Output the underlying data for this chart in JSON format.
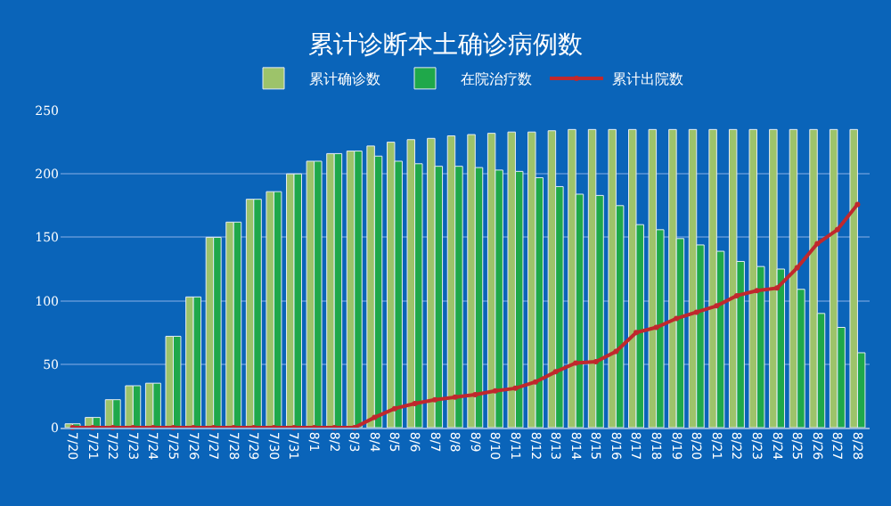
{
  "chart_data": {
    "type": "bar",
    "title": "累计诊断本土确诊病例数",
    "categories": [
      "7/20",
      "7/21",
      "7/22",
      "7/23",
      "7/24",
      "7/25",
      "7/26",
      "7/27",
      "7/28",
      "7/29",
      "7/30",
      "7/31",
      "8/1",
      "8/2",
      "8/3",
      "8/4",
      "8/5",
      "8/6",
      "8/7",
      "8/8",
      "8/9",
      "8/10",
      "8/11",
      "8/12",
      "8/13",
      "8/14",
      "8/15",
      "8/16",
      "8/17",
      "8/18",
      "8/19",
      "8/20",
      "8/21",
      "8/22",
      "8/23",
      "8/24",
      "8/25",
      "8/26",
      "8/27",
      "8/28"
    ],
    "series": [
      {
        "name": "累计确诊数",
        "color": "#9dc36a",
        "values": [
          3,
          8,
          22,
          33,
          35,
          72,
          103,
          150,
          162,
          180,
          186,
          200,
          210,
          216,
          218,
          222,
          225,
          227,
          228,
          230,
          231,
          232,
          233,
          233,
          234,
          235,
          235,
          235,
          235,
          235,
          235,
          235,
          235,
          235,
          235,
          235,
          235,
          235,
          235,
          235
        ]
      },
      {
        "name": "在院治疗数",
        "color": "#1fa84a",
        "values": [
          3,
          8,
          22,
          33,
          35,
          72,
          103,
          150,
          162,
          180,
          186,
          200,
          210,
          216,
          218,
          214,
          210,
          208,
          206,
          206,
          205,
          203,
          202,
          197,
          190,
          184,
          183,
          175,
          160,
          156,
          149,
          144,
          139,
          131,
          127,
          125,
          109,
          90,
          79,
          59
        ]
      },
      {
        "name": "累计出院数",
        "type": "line",
        "color": "#c0282d",
        "values": [
          0,
          0,
          0,
          0,
          0,
          0,
          0,
          0,
          0,
          0,
          0,
          0,
          0,
          0,
          0,
          8,
          15,
          19,
          22,
          24,
          26,
          29,
          31,
          36,
          44,
          51,
          52,
          60,
          75,
          79,
          86,
          91,
          96,
          104,
          108,
          110,
          126,
          145,
          156,
          176
        ]
      }
    ],
    "ylim": [
      0,
      250
    ],
    "yticks": [
      0,
      50,
      100,
      150,
      200,
      250
    ],
    "grid": "y",
    "legend": "top",
    "marker": "circle"
  }
}
